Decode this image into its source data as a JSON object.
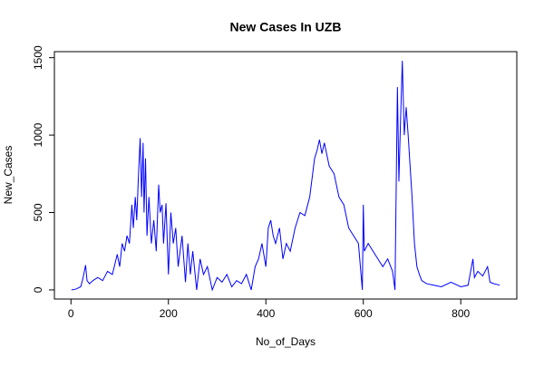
{
  "chart_data": {
    "type": "line",
    "title": "New Cases In UZB",
    "xlabel": "No_of_Days",
    "ylabel": "New_Cases",
    "x": [
      1,
      10,
      20,
      25,
      30,
      33,
      38,
      45,
      55,
      65,
      75,
      85,
      95,
      100,
      105,
      110,
      115,
      120,
      125,
      128,
      132,
      135,
      138,
      142,
      145,
      148,
      150,
      153,
      156,
      160,
      165,
      170,
      175,
      180,
      183,
      187,
      190,
      195,
      200,
      205,
      210,
      215,
      220,
      228,
      235,
      240,
      245,
      250,
      258,
      265,
      272,
      280,
      290,
      300,
      310,
      320,
      330,
      340,
      350,
      360,
      370,
      378,
      385,
      392,
      400,
      405,
      410,
      415,
      420,
      428,
      435,
      442,
      450,
      460,
      470,
      480,
      490,
      500,
      505,
      510,
      515,
      520,
      530,
      540,
      550,
      560,
      570,
      580,
      590,
      598,
      600,
      602,
      610,
      620,
      630,
      640,
      650,
      660,
      665,
      668,
      670,
      673,
      676,
      680,
      684,
      688,
      692,
      696,
      700,
      705,
      710,
      715,
      720,
      730,
      745,
      760,
      780,
      800,
      815,
      825,
      828,
      835,
      845,
      855,
      860,
      868,
      875,
      880
    ],
    "series": [
      {
        "name": "New_Cases",
        "color": "#0000ff",
        "values": [
          0,
          5,
          20,
          80,
          160,
          60,
          40,
          60,
          80,
          60,
          120,
          100,
          230,
          150,
          300,
          250,
          350,
          300,
          550,
          400,
          600,
          450,
          700,
          980,
          600,
          950,
          500,
          850,
          350,
          600,
          300,
          450,
          250,
          680,
          500,
          550,
          300,
          560,
          100,
          500,
          300,
          400,
          150,
          350,
          50,
          300,
          100,
          250,
          0,
          200,
          100,
          150,
          0,
          80,
          50,
          100,
          20,
          60,
          40,
          100,
          0,
          150,
          200,
          300,
          150,
          400,
          450,
          350,
          300,
          400,
          200,
          300,
          250,
          400,
          500,
          480,
          600,
          850,
          900,
          970,
          880,
          950,
          800,
          750,
          600,
          550,
          400,
          350,
          300,
          0,
          550,
          250,
          300,
          250,
          200,
          150,
          200,
          120,
          0,
          800,
          1310,
          700,
          1050,
          1480,
          1000,
          1180,
          1000,
          800,
          600,
          300,
          150,
          100,
          60,
          40,
          30,
          20,
          50,
          20,
          30,
          200,
          80,
          120,
          90,
          150,
          50,
          40,
          35,
          30
        ]
      }
    ],
    "xlim": [
      -34,
      915
    ],
    "ylim": [
      -59,
      1539
    ],
    "xticks": [
      0,
      200,
      400,
      600,
      800
    ],
    "yticks": [
      0,
      500,
      1000,
      1500
    ]
  }
}
